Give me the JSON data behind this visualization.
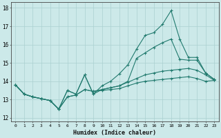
{
  "xlabel": "Humidex (Indice chaleur)",
  "xlim": [
    -0.5,
    23.5
  ],
  "ylim": [
    11.8,
    18.3
  ],
  "yticks": [
    12,
    13,
    14,
    15,
    16,
    17,
    18
  ],
  "xticks": [
    0,
    1,
    2,
    3,
    4,
    5,
    6,
    7,
    8,
    9,
    10,
    11,
    12,
    13,
    14,
    15,
    16,
    17,
    18,
    19,
    20,
    21,
    22,
    23
  ],
  "bg_color": "#cce9e9",
  "grid_color": "#aad0d0",
  "line_color": "#217a6e",
  "lines": [
    [
      13.8,
      13.3,
      13.15,
      13.05,
      12.95,
      12.48,
      13.15,
      13.25,
      13.55,
      13.45,
      13.5,
      13.55,
      13.6,
      13.75,
      13.9,
      14.0,
      14.05,
      14.1,
      14.15,
      14.2,
      14.25,
      14.15,
      14.0,
      14.05
    ],
    [
      13.8,
      13.3,
      13.15,
      13.05,
      12.95,
      12.48,
      13.15,
      13.25,
      13.55,
      13.45,
      13.55,
      13.65,
      13.75,
      13.95,
      14.15,
      14.35,
      14.45,
      14.55,
      14.6,
      14.65,
      14.7,
      14.6,
      14.35,
      14.05
    ],
    [
      13.8,
      13.3,
      13.15,
      13.05,
      12.95,
      12.48,
      13.5,
      13.3,
      14.35,
      13.3,
      13.55,
      13.65,
      13.75,
      14.0,
      15.25,
      15.55,
      15.85,
      16.1,
      16.3,
      15.2,
      15.15,
      15.15,
      14.45,
      14.1
    ],
    [
      13.8,
      13.3,
      13.15,
      13.05,
      12.95,
      12.48,
      13.5,
      13.3,
      14.35,
      13.3,
      13.75,
      14.0,
      14.4,
      14.9,
      15.75,
      16.5,
      16.65,
      17.1,
      17.85,
      16.3,
      15.3,
      15.3,
      14.45,
      14.1
    ]
  ]
}
